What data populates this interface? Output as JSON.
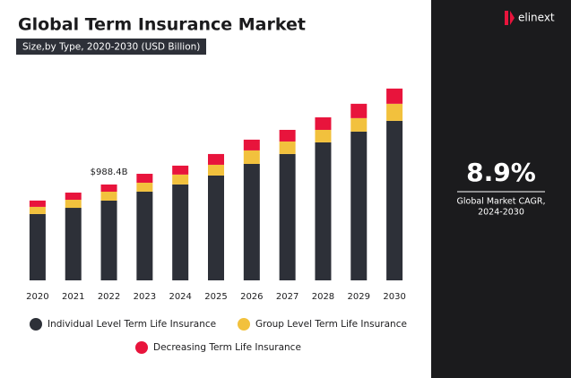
{
  "chart_data": {
    "type": "stacked_bar",
    "title": "Global Term Insurance Market",
    "subtitle": "Size,by Type, 2020-2030 (USD Billion)",
    "categories": [
      "2020",
      "2021",
      "2022",
      "2023",
      "2024",
      "2025",
      "2026",
      "2027",
      "2028",
      "2029",
      "2030"
    ],
    "series": [
      {
        "name": "Individual Level Term Life Insurance",
        "color": "#2d3038",
        "values": [
          684,
          748,
          822.4,
          915,
          989,
          1081,
          1201,
          1303,
          1423,
          1534,
          1645
        ]
      },
      {
        "name": "Group Level Term Life Insurance",
        "color": "#f2c13d",
        "values": [
          74,
          83,
          92,
          92,
          102,
          111,
          139,
          129,
          129,
          139,
          176
        ]
      },
      {
        "name": "Decreasing Term Life Insurance",
        "color": "#e8143c",
        "values": [
          65,
          74,
          74,
          92,
          92,
          111,
          111,
          120,
          129,
          148,
          157
        ]
      }
    ],
    "annotation": {
      "text": "$988.4B",
      "value": 988.4,
      "category": "2022"
    },
    "ylim": [
      0,
      2300
    ],
    "grid": false
  },
  "side_panel": {
    "brand": "elinext",
    "cagr": "8.9%",
    "cagr_label": "Global Market CAGR,",
    "cagr_period": "2024-2030"
  }
}
